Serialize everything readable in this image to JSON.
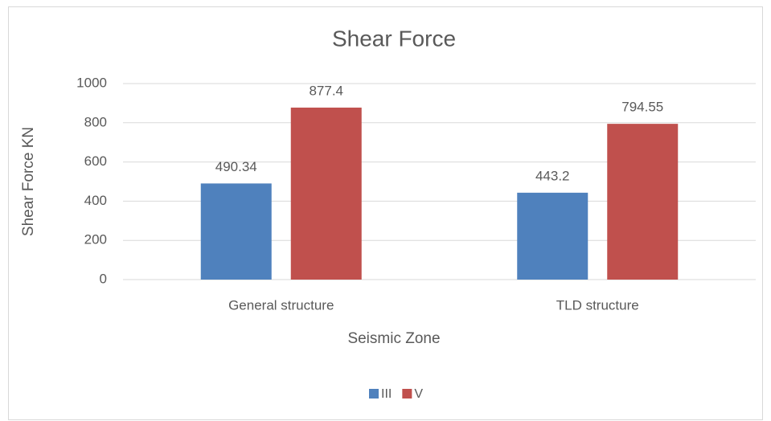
{
  "chart_data": {
    "type": "bar",
    "title": "Shear Force",
    "x_label": "Seismic Zone",
    "y_label": "Shear Force KN",
    "categories": [
      "General structure",
      "TLD structure"
    ],
    "series": [
      {
        "name": "III",
        "color": "#4f81bd",
        "values": [
          490.34,
          443.2
        ]
      },
      {
        "name": "V",
        "color": "#c0504d",
        "values": [
          877.4,
          794.55
        ]
      }
    ],
    "ylim": [
      0,
      1000
    ],
    "yticks": [
      0,
      200,
      400,
      600,
      800,
      1000
    ],
    "grid": true,
    "legend": "bottom"
  }
}
